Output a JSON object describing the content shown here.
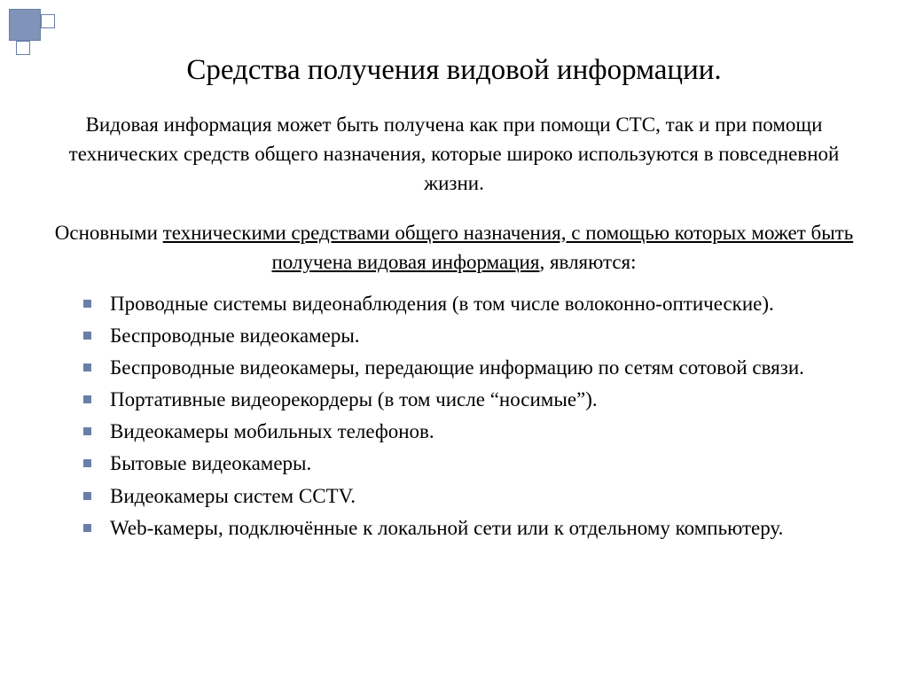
{
  "colors": {
    "text": "#000000",
    "background": "#ffffff",
    "bullet": "#6a7fa8",
    "deco_fill": "#8093b8",
    "deco_border": "#6a7fa8"
  },
  "typography": {
    "title_fontsize_pt": 25,
    "body_fontsize_pt": 17,
    "font_family": "Times New Roman"
  },
  "title": "Средства получения видовой информации.",
  "intro": "Видовая информация  может быть получена как при помощи СТС, так и при помощи технических средств общего назначения, которые широко используются в повседневной жизни.",
  "lead": {
    "prefix": "Основными ",
    "underlined": "техническими средствами общего назначения, с помощью которых может быть получена видовая информация",
    "suffix": ", являются:"
  },
  "bullets": [
    "Проводные системы видеонаблюдения (в том числе волоконно-оптические).",
    "Беспроводные видеокамеры.",
    "Беспроводные видеокамеры, передающие информацию по сетям сотовой связи.",
    "Портативные видеорекордеры (в том числе “носимые”).",
    "Видеокамеры мобильных телефонов.",
    "Бытовые видеокамеры.",
    "Видеокамеры систем CCTV.",
    "Web-камеры, подключённые к локальной сети или к отдельному компьютеру."
  ]
}
